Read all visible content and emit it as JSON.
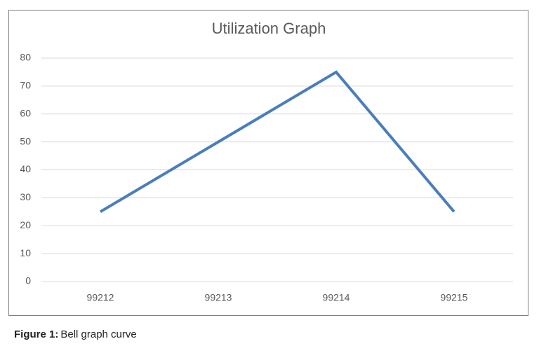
{
  "chart_data": {
    "type": "line",
    "title": "Utilization Graph",
    "categories": [
      "99212",
      "99213",
      "99214",
      "99215"
    ],
    "series": [
      {
        "name": "Utilization",
        "color": "#4a7ebb",
        "values": [
          25,
          50,
          75,
          25
        ]
      }
    ],
    "ylim": [
      0,
      80
    ],
    "yticks": [
      0,
      10,
      20,
      30,
      40,
      50,
      60,
      70,
      80
    ],
    "grid": true,
    "legend": false
  },
  "caption": {
    "label": "Figure 1:",
    "text": "Bell graph curve"
  }
}
